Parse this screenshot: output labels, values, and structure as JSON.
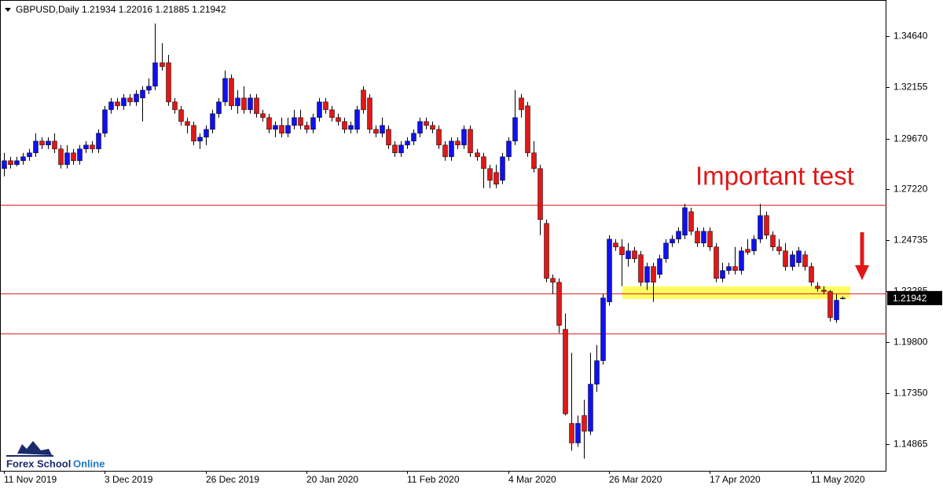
{
  "chart_data": {
    "type": "candlestick",
    "title": "GBPUSD,Daily  1.21934 1.22016 1.21885 1.21942",
    "annotation": "Important test",
    "up_color": "#1010f0",
    "down_color": "#e01818",
    "line_color": "#e02020",
    "zone_color": "#ffff60",
    "last_price": 1.21942,
    "ylim": [
      1.1357,
      1.3639
    ],
    "yticks": [
      {
        "value": 1.3464,
        "label": "1.34640"
      },
      1.32155,
      {
        "value": 1.2967,
        "label": "1.29670"
      },
      {
        "value": 1.2722,
        "label": "1.27220"
      },
      1.24735,
      1.22285,
      {
        "value": 1.198,
        "label": "1.19800"
      },
      {
        "value": 1.1735,
        "label": "1.17350"
      },
      1.14865
    ],
    "hlines": [
      1.2646,
      1.2217,
      1.2023
    ],
    "zone": [
      1.219,
      1.2251
    ],
    "categories": [
      "11 Nov 2019",
      null,
      null,
      null,
      null,
      null,
      null,
      null,
      null,
      null,
      null,
      null,
      null,
      null,
      null,
      null,
      "3 Dec 2019",
      null,
      null,
      null,
      null,
      null,
      null,
      null,
      null,
      null,
      null,
      null,
      null,
      null,
      null,
      null,
      "26 Dec 2019",
      null,
      null,
      null,
      null,
      null,
      null,
      null,
      null,
      null,
      null,
      null,
      null,
      null,
      null,
      null,
      "20 Jan 2020",
      null,
      null,
      null,
      null,
      null,
      null,
      null,
      null,
      null,
      null,
      null,
      null,
      null,
      null,
      null,
      "11 Feb 2020",
      null,
      null,
      null,
      null,
      null,
      null,
      null,
      null,
      null,
      null,
      null,
      null,
      null,
      null,
      null,
      "4 Mar 2020",
      null,
      null,
      null,
      null,
      null,
      null,
      null,
      null,
      null,
      null,
      null,
      null,
      null,
      null,
      null,
      "26 Mar 2020",
      null,
      null,
      null,
      null,
      null,
      null,
      null,
      null,
      null,
      null,
      null,
      null,
      null,
      null,
      null,
      "17 Apr 2020",
      null,
      null,
      null,
      null,
      null,
      null,
      null,
      null,
      null,
      null,
      null,
      null,
      null,
      null,
      null,
      "11 May 2020",
      null,
      null,
      null,
      null,
      null
    ],
    "ohlc": [
      [
        1.2822,
        1.2898,
        1.2784,
        1.286
      ],
      [
        1.286,
        1.2879,
        1.2822,
        1.2841
      ],
      [
        1.2841,
        1.2879,
        1.2833,
        1.286
      ],
      [
        1.286,
        1.2898,
        1.2841,
        1.2879
      ],
      [
        1.2879,
        1.2917,
        1.286,
        1.2898
      ],
      [
        1.2898,
        1.2993,
        1.2879,
        1.2955
      ],
      [
        1.2955,
        1.2974,
        1.2917,
        1.2936
      ],
      [
        1.2936,
        1.2974,
        1.2917,
        1.2955
      ],
      [
        1.2955,
        1.2993,
        1.2898,
        1.2917
      ],
      [
        1.2917,
        1.2936,
        1.2822,
        1.2841
      ],
      [
        1.2841,
        1.2936,
        1.2822,
        1.2898
      ],
      [
        1.2898,
        1.2917,
        1.2841,
        1.286
      ],
      [
        1.286,
        1.2936,
        1.2841,
        1.2917
      ],
      [
        1.2917,
        1.2955,
        1.2898,
        1.2936
      ],
      [
        1.2936,
        1.2955,
        1.2898,
        1.2917
      ],
      [
        1.2917,
        1.3012,
        1.2898,
        1.2993
      ],
      [
        1.2993,
        1.3126,
        1.2974,
        1.3107
      ],
      [
        1.3107,
        1.3164,
        1.3088,
        1.3145
      ],
      [
        1.3145,
        1.3164,
        1.3107,
        1.3126
      ],
      [
        1.3126,
        1.3183,
        1.3107,
        1.3164
      ],
      [
        1.3164,
        1.3183,
        1.3126,
        1.3145
      ],
      [
        1.3145,
        1.3202,
        1.3126,
        1.3183
      ],
      [
        1.3164,
        1.3221,
        1.305,
        1.3202
      ],
      [
        1.3202,
        1.3259,
        1.3183,
        1.3221
      ],
      [
        1.3221,
        1.3525,
        1.3202,
        1.3335
      ],
      [
        1.3335,
        1.343,
        1.3297,
        1.3316
      ],
      [
        1.3335,
        1.3373,
        1.3126,
        1.3145
      ],
      [
        1.3145,
        1.3164,
        1.3088,
        1.3107
      ],
      [
        1.3107,
        1.3126,
        1.3031,
        1.305
      ],
      [
        1.305,
        1.3069,
        1.2993,
        1.3031
      ],
      [
        1.3031,
        1.305,
        1.2936,
        1.2955
      ],
      [
        1.2955,
        1.2993,
        1.2917,
        1.2974
      ],
      [
        1.2974,
        1.3031,
        1.2936,
        1.3012
      ],
      [
        1.3012,
        1.3107,
        1.2993,
        1.3088
      ],
      [
        1.3088,
        1.3164,
        1.3069,
        1.3145
      ],
      [
        1.3145,
        1.3297,
        1.3126,
        1.3259
      ],
      [
        1.3259,
        1.3278,
        1.3107,
        1.3126
      ],
      [
        1.3126,
        1.3202,
        1.3088,
        1.3164
      ],
      [
        1.3164,
        1.3221,
        1.3088,
        1.3107
      ],
      [
        1.3107,
        1.3183,
        1.3088,
        1.3164
      ],
      [
        1.3164,
        1.3183,
        1.3069,
        1.3088
      ],
      [
        1.3088,
        1.3107,
        1.305,
        1.3069
      ],
      [
        1.3069,
        1.3088,
        1.2993,
        1.3012
      ],
      [
        1.3012,
        1.305,
        1.2974,
        1.3031
      ],
      [
        1.3031,
        1.3069,
        1.2974,
        1.2993
      ],
      [
        1.2993,
        1.3069,
        1.2974,
        1.3031
      ],
      [
        1.3031,
        1.3107,
        1.3012,
        1.3069
      ],
      [
        1.3069,
        1.3107,
        1.3012,
        1.3031
      ],
      [
        1.3031,
        1.305,
        1.2993,
        1.3012
      ],
      [
        1.3012,
        1.3088,
        1.2993,
        1.3069
      ],
      [
        1.3069,
        1.3164,
        1.305,
        1.3145
      ],
      [
        1.3145,
        1.3164,
        1.3088,
        1.3107
      ],
      [
        1.3107,
        1.3126,
        1.305,
        1.3069
      ],
      [
        1.3069,
        1.3088,
        1.3031,
        1.305
      ],
      [
        1.305,
        1.3069,
        1.2993,
        1.3012
      ],
      [
        1.3012,
        1.305,
        1.2993,
        1.3031
      ],
      [
        1.3012,
        1.3126,
        1.2993,
        1.3107
      ],
      [
        1.3202,
        1.3221,
        1.3088,
        1.3107
      ],
      [
        1.3164,
        1.3183,
        1.2993,
        1.3012
      ],
      [
        1.3012,
        1.3031,
        1.2974,
        1.2993
      ],
      [
        1.2993,
        1.3069,
        1.2974,
        1.3031
      ],
      [
        1.3012,
        1.3031,
        1.2917,
        1.2936
      ],
      [
        1.2936,
        1.2955,
        1.2879,
        1.2898
      ],
      [
        1.2898,
        1.2955,
        1.2879,
        1.2936
      ],
      [
        1.2936,
        1.2974,
        1.2917,
        1.2955
      ],
      [
        1.2955,
        1.3012,
        1.2936,
        1.2993
      ],
      [
        1.2993,
        1.3069,
        1.2974,
        1.305
      ],
      [
        1.305,
        1.3069,
        1.3012,
        1.3031
      ],
      [
        1.3031,
        1.305,
        1.2993,
        1.3012
      ],
      [
        1.3012,
        1.3031,
        1.2917,
        1.2936
      ],
      [
        1.2936,
        1.2955,
        1.286,
        1.2879
      ],
      [
        1.2879,
        1.2974,
        1.286,
        1.2955
      ],
      [
        1.2955,
        1.2974,
        1.2917,
        1.2936
      ],
      [
        1.2936,
        1.3031,
        1.2917,
        1.3012
      ],
      [
        1.3012,
        1.3031,
        1.2879,
        1.2898
      ],
      [
        1.2898,
        1.2917,
        1.286,
        1.2879
      ],
      [
        1.2879,
        1.2898,
        1.2727,
        1.2822
      ],
      [
        1.2822,
        1.2841,
        1.2727,
        1.2765
      ],
      [
        1.2803,
        1.2841,
        1.2727,
        1.2746
      ],
      [
        1.2765,
        1.2898,
        1.2746,
        1.2879
      ],
      [
        1.2879,
        1.2974,
        1.286,
        1.2955
      ],
      [
        1.2955,
        1.3202,
        1.2936,
        1.3069
      ],
      [
        1.3164,
        1.3183,
        1.3069,
        1.3107
      ],
      [
        1.3126,
        1.3145,
        1.2879,
        1.2898
      ],
      [
        1.2898,
        1.2955,
        1.2803,
        1.2822
      ],
      [
        1.2822,
        1.2841,
        1.2499,
        1.2575
      ],
      [
        1.2556,
        1.2575,
        1.2271,
        1.229
      ],
      [
        1.229,
        1.2309,
        1.2214,
        1.2271
      ],
      [
        1.2271,
        1.229,
        1.2024,
        1.2062
      ],
      [
        1.2043,
        1.2119,
        1.1625,
        1.1633
      ],
      [
        1.1587,
        1.1929,
        1.1454,
        1.1492
      ],
      [
        1.1492,
        1.1625,
        1.1473,
        1.1587
      ],
      [
        1.1625,
        1.1701,
        1.1416,
        1.1549
      ],
      [
        1.1549,
        1.1929,
        1.153,
        1.1777
      ],
      [
        1.1777,
        1.1967,
        1.1739,
        1.1891
      ],
      [
        1.1891,
        1.2214,
        1.1872,
        1.2195
      ],
      [
        1.2176,
        1.2499,
        1.2157,
        1.248
      ],
      [
        1.2461,
        1.248,
        1.2423,
        1.2442
      ],
      [
        1.2442,
        1.248,
        1.2252,
        1.2404
      ],
      [
        1.2385,
        1.2461,
        1.2347,
        1.2423
      ],
      [
        1.2423,
        1.2442,
        1.2366,
        1.2385
      ],
      [
        1.2404,
        1.2423,
        1.2252,
        1.2271
      ],
      [
        1.2271,
        1.2366,
        1.2233,
        1.2347
      ],
      [
        1.2347,
        1.2366,
        1.2176,
        1.2271
      ],
      [
        1.2309,
        1.2404,
        1.229,
        1.2385
      ],
      [
        1.2385,
        1.248,
        1.2366,
        1.2461
      ],
      [
        1.2461,
        1.2499,
        1.2442,
        1.248
      ],
      [
        1.248,
        1.2537,
        1.2461,
        1.2518
      ],
      [
        1.2499,
        1.2651,
        1.248,
        1.2632
      ],
      [
        1.2613,
        1.2632,
        1.2499,
        1.2518
      ],
      [
        1.2518,
        1.2537,
        1.2442,
        1.2461
      ],
      [
        1.2461,
        1.2537,
        1.2442,
        1.2518
      ],
      [
        1.2518,
        1.2537,
        1.2423,
        1.2442
      ],
      [
        1.2442,
        1.2461,
        1.2271,
        1.229
      ],
      [
        1.229,
        1.2366,
        1.2271,
        1.2328
      ],
      [
        1.2328,
        1.2366,
        1.2309,
        1.2347
      ],
      [
        1.2347,
        1.2442,
        1.2309,
        1.2328
      ],
      [
        1.2328,
        1.2442,
        1.2309,
        1.2423
      ],
      [
        1.2431,
        1.248,
        1.2404,
        1.2416
      ],
      [
        1.2423,
        1.2499,
        1.2404,
        1.248
      ],
      [
        1.248,
        1.2651,
        1.2461,
        1.2594
      ],
      [
        1.2594,
        1.2613,
        1.248,
        1.2499
      ],
      [
        1.2499,
        1.2518,
        1.2423,
        1.2442
      ],
      [
        1.2442,
        1.248,
        1.2404,
        1.2423
      ],
      [
        1.2423,
        1.2461,
        1.2328,
        1.2347
      ],
      [
        1.2347,
        1.2423,
        1.2328,
        1.2404
      ],
      [
        1.2366,
        1.2442,
        1.2347,
        1.2423
      ],
      [
        1.2404,
        1.2423,
        1.2328,
        1.2347
      ],
      [
        1.2347,
        1.2366,
        1.2252,
        1.2271
      ],
      [
        1.2252,
        1.2271,
        1.2226,
        1.2241
      ],
      [
        1.2233,
        1.2252,
        1.2214,
        1.2226
      ],
      [
        1.2226,
        1.2233,
        1.2081,
        1.21
      ],
      [
        1.2089,
        1.2214,
        1.2074,
        1.2184
      ],
      [
        1.21934,
        1.22016,
        1.21885,
        1.21942
      ]
    ]
  },
  "logo": {
    "first": "Forex School",
    "second": "Online"
  }
}
